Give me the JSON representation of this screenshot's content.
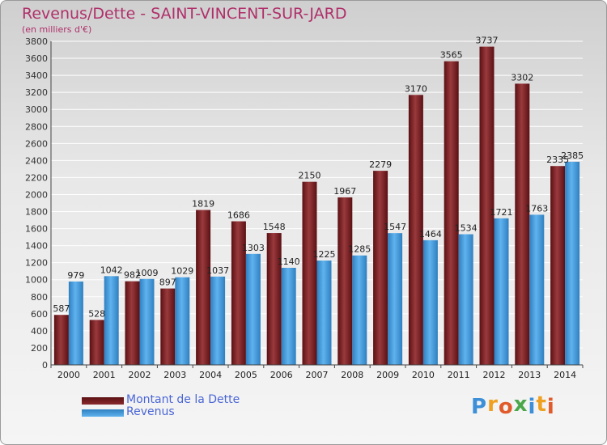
{
  "title": "Revenus/Dette - SAINT-VINCENT-SUR-JARD",
  "subtitle": "(en milliers d'€)",
  "chart_data": {
    "type": "bar",
    "categories": [
      "2000",
      "2001",
      "2002",
      "2003",
      "2004",
      "2005",
      "2006",
      "2007",
      "2008",
      "2009",
      "2010",
      "2011",
      "2012",
      "2013",
      "2014"
    ],
    "series": [
      {
        "name": "Montant de la Dette",
        "color": "#7a1f22",
        "values": [
          587,
          528,
          982,
          897,
          1819,
          1686,
          1548,
          2150,
          1967,
          2279,
          3170,
          3565,
          3737,
          3302,
          2335
        ]
      },
      {
        "name": "Revenus",
        "color": "#3a9be0",
        "values": [
          979,
          1042,
          1009,
          1029,
          1037,
          1303,
          1140,
          1225,
          1285,
          1547,
          1464,
          1534,
          1721,
          1763,
          2385
        ]
      }
    ],
    "value_labels": [
      [
        "587",
        "528",
        "982",
        "897",
        "1819",
        "1686",
        "1548",
        "2150",
        "1967",
        "2279",
        "3170",
        "3565",
        "3737",
        "3302",
        "2335"
      ],
      [
        "979",
        "1042",
        "1009",
        "1029",
        "1037",
        "1303",
        "1140",
        "1225",
        "1285",
        "1547",
        "1464",
        "1534",
        "1721",
        "1763",
        "2385"
      ]
    ],
    "yticks": [
      "0",
      "200",
      "400",
      "600",
      "800",
      "1000",
      "1200",
      "1400",
      "1600",
      "1800",
      "2000",
      "2200",
      "2400",
      "2600",
      "2800",
      "3000",
      "3200",
      "3400",
      "3600",
      "3800"
    ],
    "ylim": [
      0,
      3800
    ],
    "grid": true,
    "legend_position": "bottom-left"
  },
  "legend": {
    "dette": "Montant de la Dette",
    "revenus": "Revenus"
  },
  "logo": {
    "letters": [
      "P",
      "r",
      "o",
      "x",
      "i",
      "t",
      "i"
    ],
    "colors": [
      "#3d8fd8",
      "#f0a020",
      "#e05a2a",
      "#4aa84a",
      "#3d8fd8",
      "#f0a020",
      "#e05a2a"
    ]
  }
}
